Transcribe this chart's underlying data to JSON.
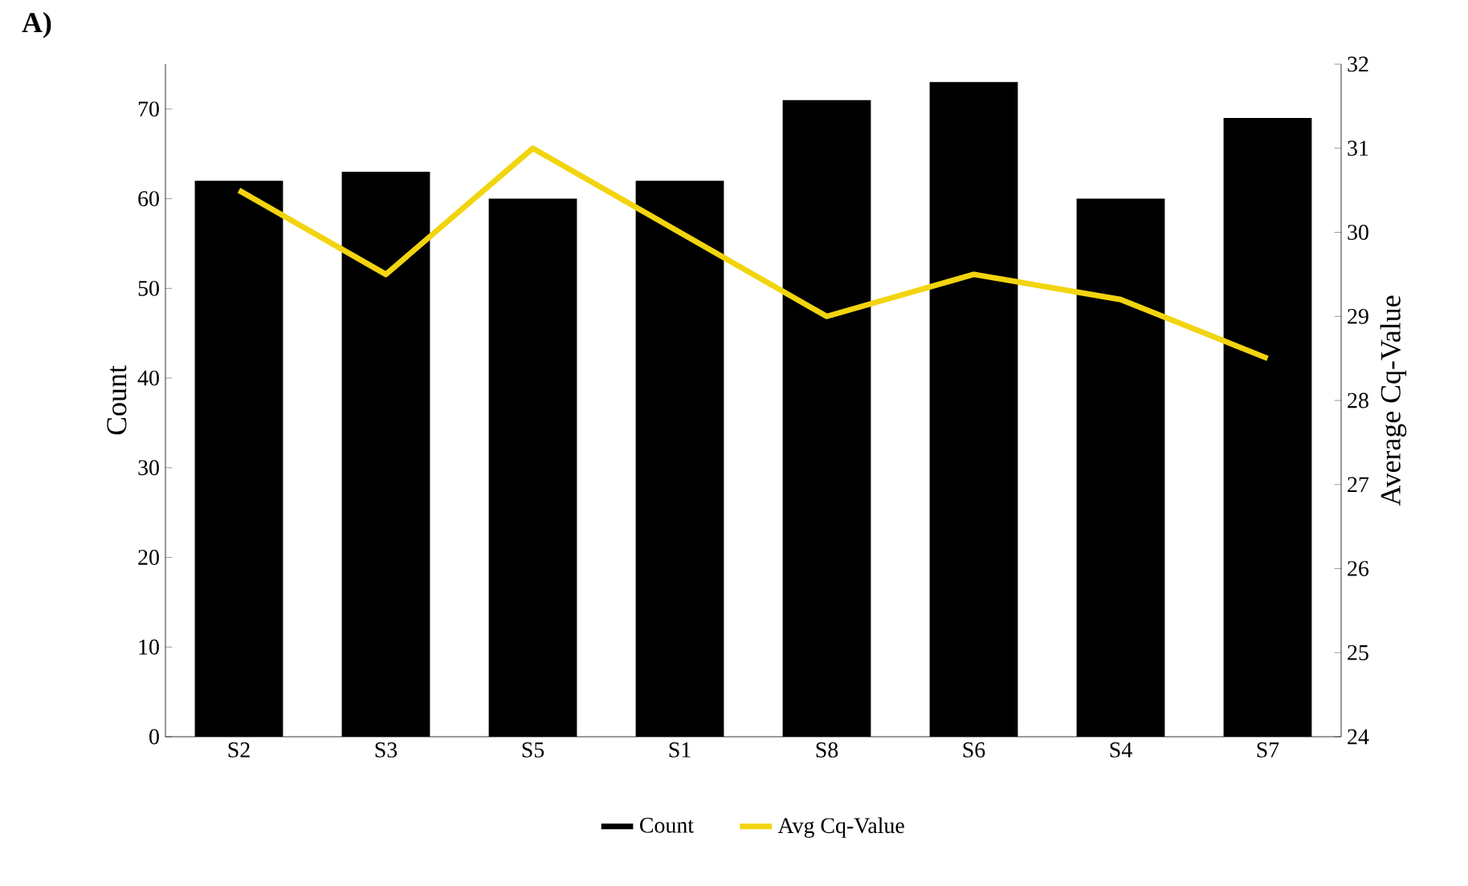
{
  "chart_data": {
    "type": "bar",
    "annotations": [
      "A)"
    ],
    "ylabel": "Count",
    "y2label": "Average Cq-Value",
    "categories": [
      "S2",
      "S3",
      "S5",
      "S1",
      "S8",
      "S6",
      "S4",
      "S7"
    ],
    "series": [
      {
        "name": "Count",
        "color": "#000000",
        "values": [
          62,
          63,
          60,
          62,
          71,
          73,
          60,
          69
        ]
      },
      {
        "name": "Avg Cq-Value",
        "type": "line",
        "axis": "y2",
        "color": "#f2d40f",
        "values": [
          30.5,
          29.5,
          31,
          30,
          29,
          29.5,
          29.2,
          28.5
        ]
      }
    ],
    "ylim": [
      0,
      75
    ],
    "yticks": [
      0,
      10,
      20,
      30,
      40,
      50,
      60,
      70
    ],
    "y2lim": [
      24,
      32
    ],
    "y2ticks": [
      24,
      25,
      26,
      27,
      28,
      29,
      30,
      31,
      32
    ],
    "legend": "bottom",
    "marker": "none",
    "line_style": "solid"
  }
}
